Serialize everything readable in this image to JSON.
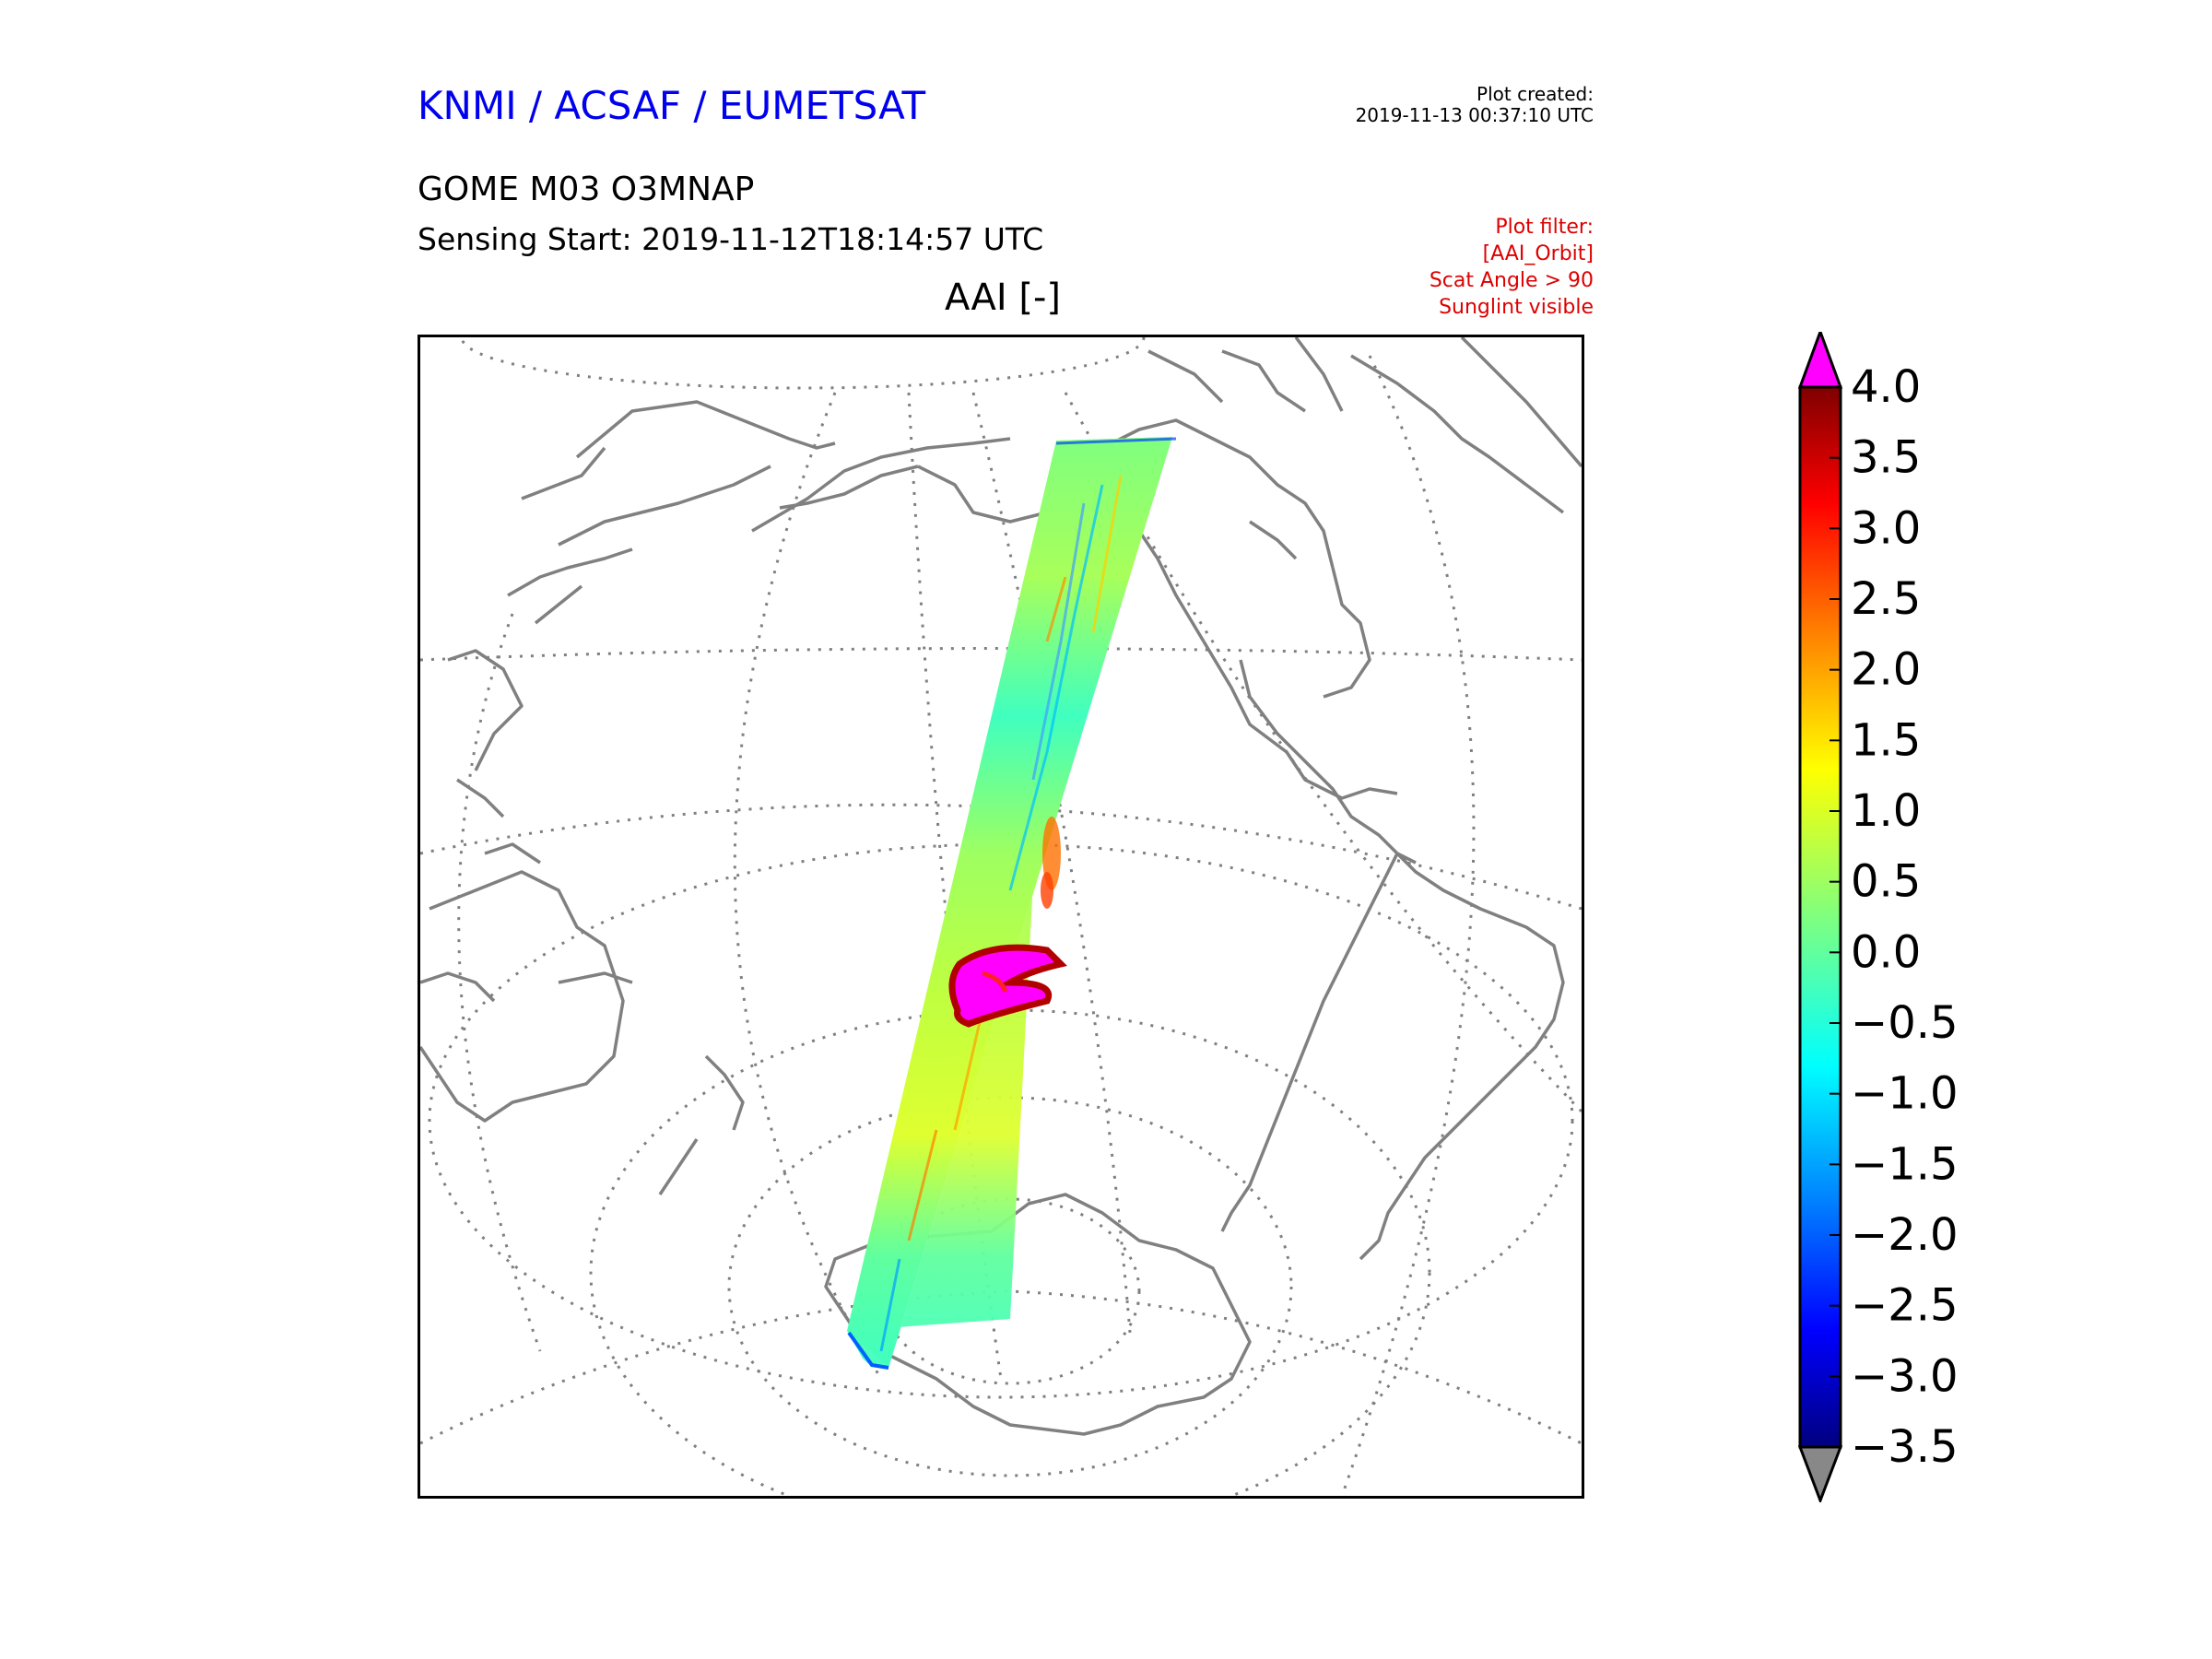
{
  "header": {
    "agency": "KNMI / ACSAF / EUMETSAT",
    "plot_created_label": "Plot created:",
    "plot_created_time": "2019-11-13 00:37:10 UTC",
    "product": "GOME M03 O3MNAP",
    "sensing_start": "Sensing Start: 2019-11-12T18:14:57 UTC",
    "filter_title": "Plot filter:",
    "filter_lines": [
      "[AAI_Orbit]",
      "Scat Angle > 90",
      "Sunglint visible"
    ]
  },
  "map": {
    "title": "AAI [-]",
    "projection": "orthographic",
    "coastline_color": "#808080",
    "graticule_color": "#808080",
    "swath_feature": "high aerosol index plume near South Pacific"
  },
  "colorbar": {
    "ticks": [
      "4.0",
      "3.5",
      "3.0",
      "2.5",
      "2.0",
      "1.5",
      "1.0",
      "0.5",
      "0.0",
      "−0.5",
      "−1.0",
      "−1.5",
      "−2.0",
      "−2.5",
      "−3.0",
      "−3.5"
    ],
    "min": -3.5,
    "max": 4.0,
    "over_color": "#ff00ff",
    "under_color": "#888888",
    "colormap": [
      "#00007f",
      "#0000ff",
      "#007fff",
      "#00ffff",
      "#7fff7f",
      "#ffff00",
      "#ff7f00",
      "#ff0000",
      "#7f0000"
    ]
  }
}
